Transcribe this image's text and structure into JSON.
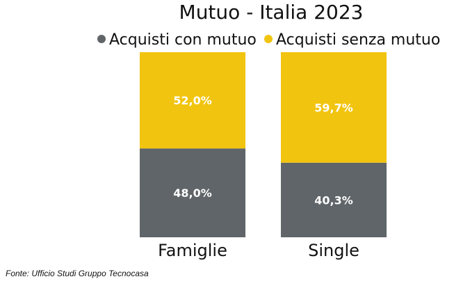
{
  "source": "Fonte: Ufficio Studi Gruppo Tecnocasa",
  "chart_data": {
    "type": "bar",
    "stacked": true,
    "percent": true,
    "title": "Mutuo - Italia 2023",
    "categories": [
      "Famiglie",
      "Single"
    ],
    "series": [
      {
        "name": "Acquisti con mutuo",
        "color": "#5f6568",
        "values": [
          48.0,
          40.3
        ],
        "labels": [
          "48,0%",
          "40,3%"
        ]
      },
      {
        "name": "Acquisti senza mutuo",
        "color": "#f1c40f",
        "values": [
          52.0,
          59.7
        ],
        "labels": [
          "52,0%",
          "59,7%"
        ]
      }
    ],
    "ylim": [
      0,
      100
    ],
    "legend_position": "top"
  }
}
